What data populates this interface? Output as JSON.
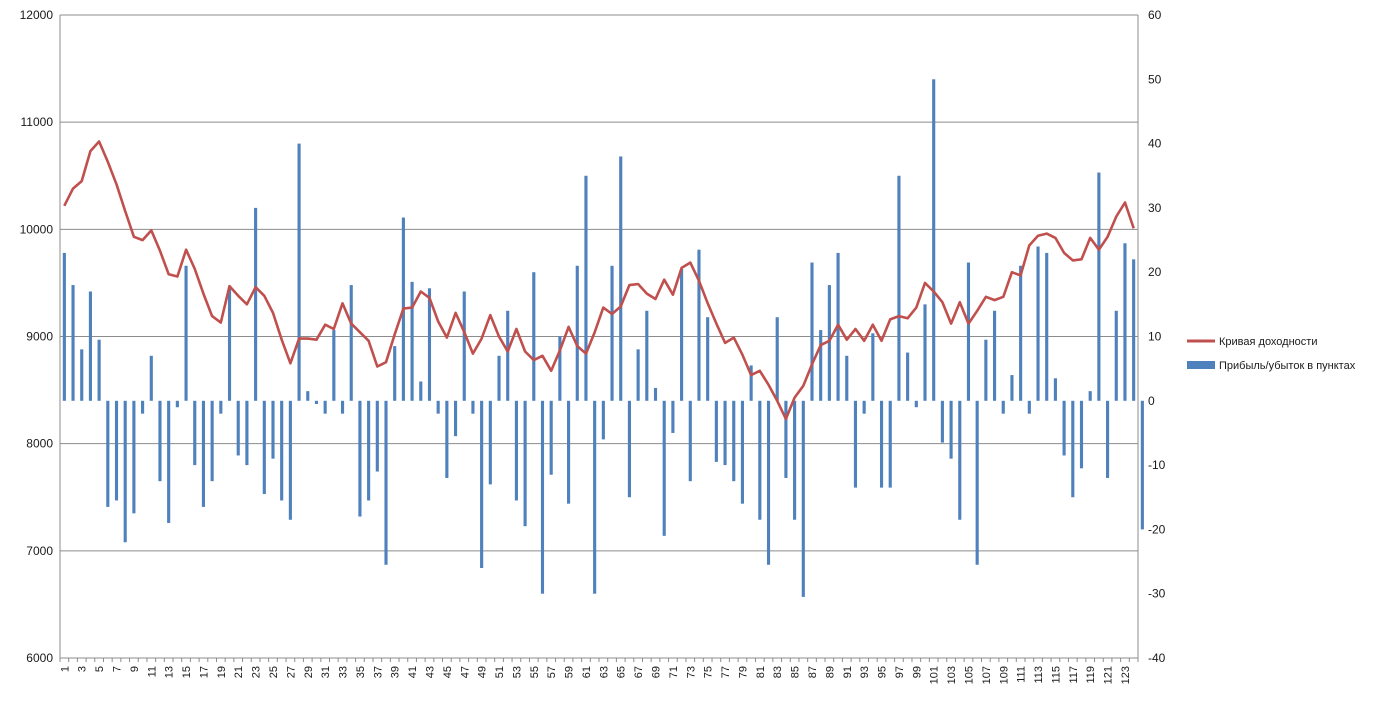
{
  "chart_data": {
    "type": "bar+line",
    "title": "",
    "categories_start": 1,
    "categories_end": 124,
    "x_tick_labels": [
      "1",
      "3",
      "5",
      "7",
      "9",
      "11",
      "13",
      "15",
      "17",
      "19",
      "21",
      "23",
      "25",
      "27",
      "29",
      "31",
      "33",
      "35",
      "37",
      "39",
      "41",
      "43",
      "45",
      "47",
      "49",
      "51",
      "53",
      "55",
      "57",
      "59",
      "61",
      "63",
      "65",
      "67",
      "69",
      "71",
      "73",
      "75",
      "77",
      "79",
      "81",
      "83",
      "85",
      "87",
      "89",
      "91",
      "93",
      "95",
      "97",
      "99",
      "101",
      "103",
      "105",
      "107",
      "109",
      "111",
      "113",
      "115",
      "117",
      "119",
      "121",
      "123"
    ],
    "y_left": {
      "ylim": [
        6000,
        12000
      ],
      "ticks": [
        6000,
        7000,
        8000,
        9000,
        10000,
        11000,
        12000
      ],
      "label": ""
    },
    "y_right": {
      "ylim": [
        -40,
        60
      ],
      "ticks": [
        -40,
        -30,
        -20,
        -10,
        0,
        10,
        20,
        30,
        40,
        50,
        60
      ],
      "label": ""
    },
    "grid": "horizontal",
    "legend_position": "right",
    "series": [
      {
        "name": "Кривая доходности",
        "type": "line",
        "axis": "left",
        "color": "#c0504d",
        "values": [
          10220,
          10380,
          10450,
          10730,
          10820,
          10630,
          10420,
          10170,
          9930,
          9900,
          9990,
          9800,
          9580,
          9560,
          9810,
          9630,
          9400,
          9190,
          9130,
          9470,
          9380,
          9300,
          9460,
          9380,
          9220,
          8970,
          8750,
          8980,
          8980,
          8970,
          9110,
          9070,
          9310,
          9120,
          9040,
          8960,
          8720,
          8760,
          9020,
          9260,
          9270,
          9420,
          9360,
          9140,
          8990,
          9220,
          9040,
          8840,
          8980,
          9200,
          9000,
          8860,
          9070,
          8860,
          8780,
          8820,
          8680,
          8870,
          9090,
          8910,
          8840,
          9040,
          9270,
          9210,
          9280,
          9480,
          9490,
          9400,
          9350,
          9530,
          9390,
          9640,
          9690,
          9520,
          9310,
          9120,
          8940,
          8990,
          8830,
          8640,
          8680,
          8550,
          8400,
          8230,
          8430,
          8540,
          8740,
          8920,
          8960,
          9110,
          8970,
          9070,
          8960,
          9110,
          8960,
          9160,
          9190,
          9170,
          9270,
          9500,
          9420,
          9320,
          9120,
          9320,
          9120,
          9240,
          9370,
          9340,
          9370,
          9600,
          9570,
          9850,
          9940,
          9960,
          9920,
          9780,
          9710,
          9720,
          9920,
          9810,
          9930,
          10120,
          10250,
          10010
        ]
      },
      {
        "name": "Прибыль/убыток в пунктах",
        "type": "bar",
        "axis": "right",
        "color": "#4f81bd",
        "values": [
          23,
          18,
          8,
          17,
          9.5,
          -16.5,
          -15.5,
          -22,
          -17.5,
          -2,
          7,
          -12.5,
          -19,
          -1,
          21,
          -10,
          -16.5,
          -12.5,
          -2,
          17.5,
          -8.5,
          -10,
          30,
          -14.5,
          -9,
          -15.5,
          -18.5,
          40,
          1.5,
          -0.5,
          -2,
          11,
          -2,
          18,
          -18,
          -15.5,
          -11,
          -25.5,
          8.5,
          28.5,
          18.5,
          3,
          17.5,
          -2,
          -12,
          -5.5,
          17,
          -2,
          -26,
          -13,
          7,
          14,
          -15.5,
          -19.5,
          20,
          -30,
          -11.5,
          10,
          -16,
          21,
          35,
          -30,
          -6,
          21,
          38,
          -15,
          8,
          14,
          2,
          -21,
          -5,
          20.5,
          -12.5,
          23.5,
          13,
          -9.5,
          -10,
          -12.5,
          -16,
          5.5,
          -18.5,
          -25.5,
          13,
          -12,
          -18.5,
          -30.5,
          21.5,
          11,
          18,
          23,
          7,
          -13.5,
          -2,
          10.5,
          -13.5,
          -13.5,
          35,
          7.5,
          -1,
          15,
          50,
          -6.5,
          -9,
          -18.5,
          21.5,
          -25.5,
          9.5,
          14,
          -2,
          4,
          21,
          -2,
          24,
          23,
          3.5,
          -8.5,
          -15,
          -10.5,
          1.5,
          35.5,
          -12,
          14,
          24.5,
          22,
          -20
        ]
      }
    ]
  }
}
